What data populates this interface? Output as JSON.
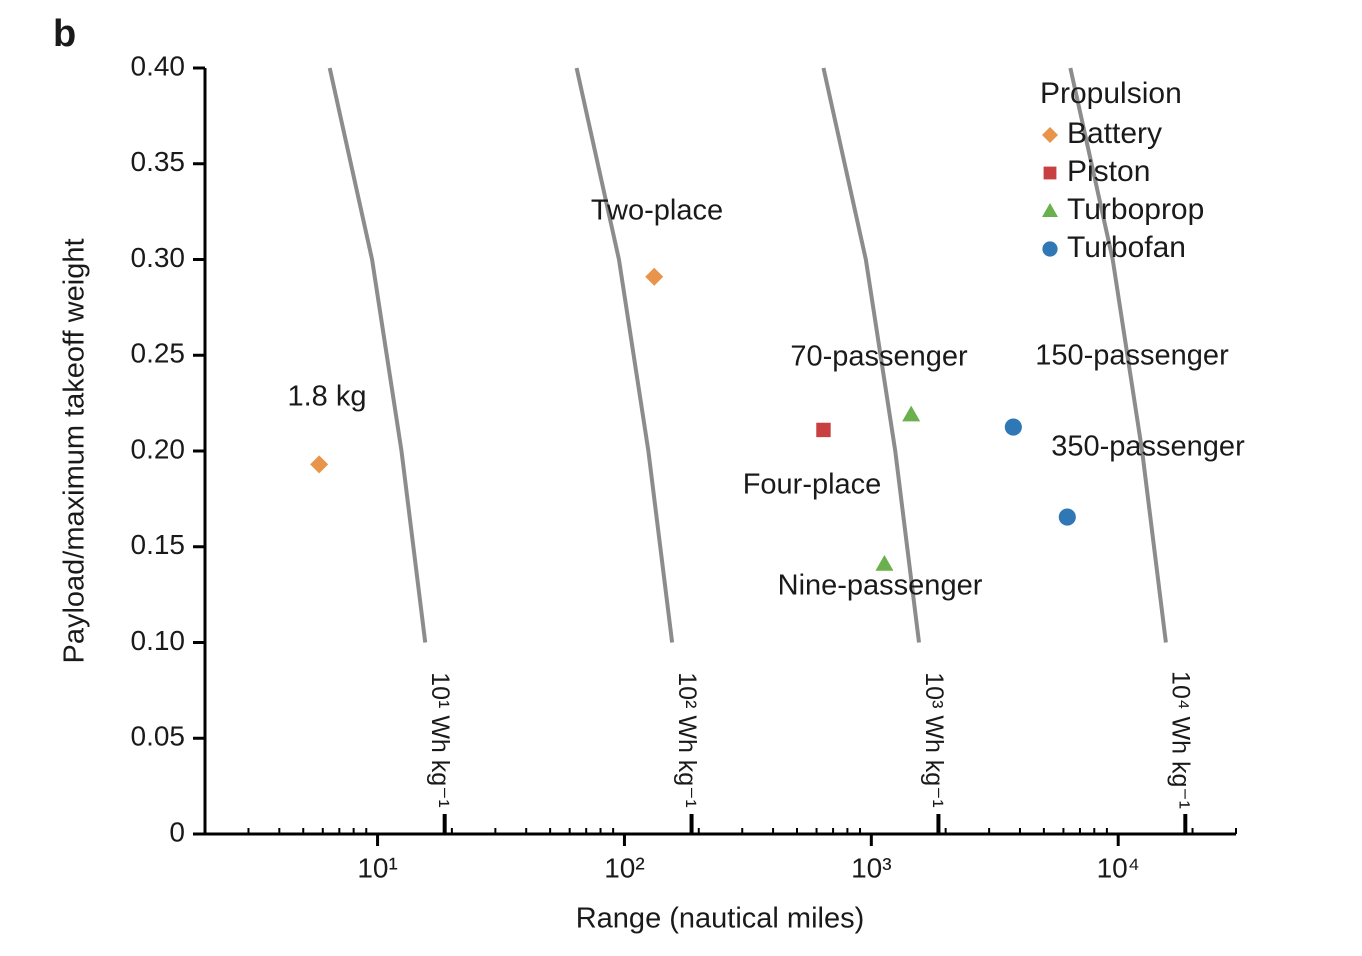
{
  "chart_data": {
    "type": "scatter",
    "panel_label": "b",
    "x_label": "Range (nautical miles)",
    "y_label": "Payload/maximum takeoff weight",
    "x_log_scale": true,
    "xlim": [
      2,
      30000
    ],
    "ylim": [
      0,
      0.4
    ],
    "xticks": [
      {
        "value": 10,
        "label": "10¹"
      },
      {
        "value": 100,
        "label": "10²"
      },
      {
        "value": 1000,
        "label": "10³"
      },
      {
        "value": 10000,
        "label": "10⁴"
      }
    ],
    "xminorticks": [
      3,
      4,
      5,
      6,
      7,
      8,
      9,
      20,
      30,
      40,
      50,
      60,
      70,
      80,
      90,
      200,
      300,
      400,
      500,
      600,
      700,
      800,
      900,
      2000,
      3000,
      4000,
      5000,
      6000,
      7000,
      8000,
      9000,
      20000,
      30000
    ],
    "yticks": [
      0,
      0.05,
      {
        "value": 0.1,
        "label": "0.10"
      },
      0.15,
      {
        "value": 0.2,
        "label": "0.20"
      },
      0.25,
      {
        "value": 0.3,
        "label": "0.30"
      },
      0.35,
      {
        "value": 0.4,
        "label": "0.40"
      }
    ],
    "legend_title": "Propulsion",
    "legend_position": "upper right",
    "series": [
      {
        "name": "Battery",
        "color": "#e8944a",
        "marker": "diamond",
        "x": [
          5.8,
          132
        ],
        "values": [
          0.193,
          0.291
        ]
      },
      {
        "name": "Piston",
        "color": "#c94040",
        "marker": "square",
        "x": [
          640
        ],
        "values": [
          0.211
        ]
      },
      {
        "name": "Turboprop",
        "color": "#6ab04c",
        "marker": "triangle",
        "x": [
          1450,
          1130
        ],
        "values": [
          0.219,
          0.141
        ]
      },
      {
        "name": "Turbofan",
        "color": "#2f77b5",
        "marker": "circle",
        "x": [
          3760,
          6220
        ],
        "values": [
          0.2125,
          0.1655
        ]
      }
    ],
    "annotations": [
      "1.8 kg",
      "Two-place",
      "70-passenger",
      "Four-place",
      "Nine-passenger",
      "150-passenger",
      "350-passenger"
    ],
    "curves": [
      {
        "label": "10¹ Wh kg⁻¹",
        "x": [
          18.7,
          15.6,
          12.5,
          9.5,
          6.4
        ],
        "y": [
          0,
          0.1,
          0.2,
          0.3,
          0.4
        ]
      },
      {
        "label": "10² Wh kg⁻¹",
        "x": [
          187,
          156,
          125,
          95,
          64
        ],
        "y": [
          0,
          0.1,
          0.2,
          0.3,
          0.4
        ]
      },
      {
        "label": "10³ Wh kg⁻¹",
        "x": [
          1870,
          1560,
          1250,
          950,
          640
        ],
        "y": [
          0,
          0.1,
          0.2,
          0.3,
          0.4
        ]
      },
      {
        "label": "10⁴ Wh kg⁻¹",
        "x": [
          18700,
          15600,
          12500,
          9500,
          6400
        ],
        "y": [
          0,
          0.1,
          0.2,
          0.3,
          0.4
        ]
      }
    ],
    "curve_color": "#8c8c8c"
  }
}
